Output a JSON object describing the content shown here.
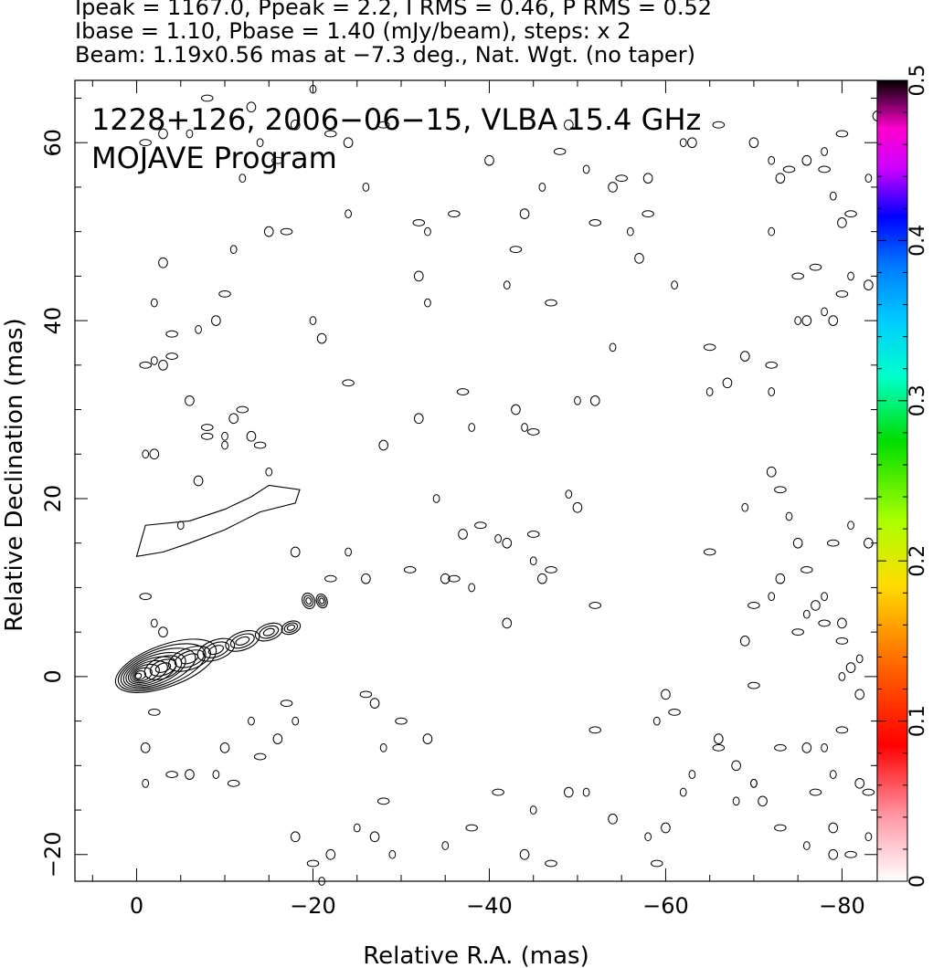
{
  "header": {
    "line1": "Ipeak = 1167.0, Ppeak = 2.2, I RMS = 0.46, P RMS = 0.52",
    "line2": "Ibase = 1.10, Pbase = 1.40 (mJy/beam), steps: x 2",
    "line3": "Beam: 1.19x0.56 mas at −7.3 deg., Nat. Wgt. (no taper)"
  },
  "chart_data": {
    "type": "contour",
    "title": "1228+126, 2006−06−15, VLBA 15.4 GHz",
    "subtitle": "MOJAVE Program",
    "xlabel": "Relative R.A. (mas)",
    "ylabel": "Relative Declination (mas)",
    "xlim": [
      7,
      -84
    ],
    "ylim": [
      -23,
      67
    ],
    "x_ticks": [
      0,
      -20,
      -40,
      -60,
      -80
    ],
    "x_tick_labels": [
      "0",
      "−20",
      "−40",
      "−60",
      "−80"
    ],
    "y_ticks": [
      -20,
      0,
      20,
      40,
      60
    ],
    "y_tick_labels": [
      "−20",
      "0",
      "20",
      "40",
      "60"
    ],
    "colorbar": {
      "range": [
        0,
        0.5
      ],
      "ticks": [
        0,
        0.1,
        0.2,
        0.3,
        0.4,
        0.5
      ],
      "tick_labels": [
        "0",
        "0.1",
        "0.2",
        "0.3",
        "0.4",
        "0.5"
      ]
    },
    "core": {
      "x": 0,
      "y": 0,
      "levels": 10
    },
    "jet_knots": [
      {
        "x": -3,
        "y": 1,
        "rx": 2.2,
        "ry": 1.2
      },
      {
        "x": -6,
        "y": 2,
        "rx": 2.5,
        "ry": 1.2
      },
      {
        "x": -9,
        "y": 3,
        "rx": 2.2,
        "ry": 1.1
      },
      {
        "x": -12,
        "y": 4,
        "rx": 2.0,
        "ry": 1.0
      },
      {
        "x": -15,
        "y": 5,
        "rx": 1.6,
        "ry": 0.9
      },
      {
        "x": -17.5,
        "y": 5.5,
        "rx": 1.1,
        "ry": 0.7
      },
      {
        "x": -19.5,
        "y": 8.5,
        "rx": 0.7,
        "ry": 0.9
      },
      {
        "x": -21,
        "y": 8.5,
        "rx": 0.6,
        "ry": 0.8
      }
    ],
    "counterjet_outline": [
      [
        0,
        13.5
      ],
      [
        -1,
        17
      ],
      [
        -6,
        17.5
      ],
      [
        -10,
        18.8
      ],
      [
        -13,
        20.2
      ],
      [
        -15,
        21.5
      ],
      [
        -18.5,
        21
      ],
      [
        -18,
        19.5
      ],
      [
        -14,
        18.5
      ],
      [
        -10,
        16.5
      ],
      [
        -6,
        15
      ],
      [
        -3,
        14
      ],
      [
        0,
        13.5
      ]
    ],
    "noise": [
      [
        -2,
        42
      ],
      [
        -3,
        46.5
      ],
      [
        -4,
        38.5
      ],
      [
        -7,
        39
      ],
      [
        -9,
        40
      ],
      [
        -10,
        43
      ],
      [
        -11,
        48
      ],
      [
        -6,
        31
      ],
      [
        -8,
        28
      ],
      [
        -10,
        26
      ],
      [
        -11,
        29
      ],
      [
        -12,
        30
      ],
      [
        -1,
        25
      ],
      [
        -2,
        25
      ],
      [
        -1,
        35
      ],
      [
        -2,
        35.5
      ],
      [
        -3,
        35
      ],
      [
        -4,
        36
      ],
      [
        -12,
        56
      ],
      [
        -15,
        50
      ],
      [
        -17,
        50
      ],
      [
        -20,
        40
      ],
      [
        -21,
        38
      ],
      [
        -24,
        33
      ],
      [
        -24,
        52
      ],
      [
        -28,
        26
      ],
      [
        -32,
        51
      ],
      [
        -33,
        42
      ],
      [
        -35,
        11
      ],
      [
        -36,
        11
      ],
      [
        -38,
        10
      ],
      [
        -37,
        16
      ],
      [
        -39,
        17
      ],
      [
        -41,
        15.5
      ],
      [
        -42,
        15
      ],
      [
        -45,
        16
      ],
      [
        -45,
        13
      ],
      [
        -46,
        11
      ],
      [
        -47,
        12
      ],
      [
        -49,
        20.5
      ],
      [
        -50,
        19
      ],
      [
        -52,
        8
      ],
      [
        -50,
        31
      ],
      [
        -52,
        31
      ],
      [
        -45,
        27.5
      ],
      [
        -44,
        28
      ],
      [
        -42,
        6
      ],
      [
        -41,
        -13
      ],
      [
        -45,
        -15
      ],
      [
        -44,
        -20
      ],
      [
        -38,
        -17
      ],
      [
        -35,
        -19
      ],
      [
        -33,
        -7
      ],
      [
        -30,
        -5
      ],
      [
        -28,
        -8
      ],
      [
        -27,
        -3
      ],
      [
        -26,
        -2
      ],
      [
        -25,
        -17
      ],
      [
        -27,
        -18
      ],
      [
        -28,
        -14
      ],
      [
        -29,
        -20
      ],
      [
        -22,
        -20
      ],
      [
        -20,
        -21
      ],
      [
        -21,
        -23
      ],
      [
        -18,
        -18
      ],
      [
        -17,
        -3
      ],
      [
        -18,
        -5
      ],
      [
        -16,
        -7
      ],
      [
        -14,
        -9
      ],
      [
        -13,
        -5
      ],
      [
        -10,
        -8
      ],
      [
        -11,
        -12
      ],
      [
        -9,
        -11
      ],
      [
        -6,
        -11
      ],
      [
        -4,
        -11
      ],
      [
        -1,
        -12
      ],
      [
        -1,
        -8
      ],
      [
        -2,
        -4
      ],
      [
        -2,
        6
      ],
      [
        -3,
        5
      ],
      [
        -1,
        9
      ],
      [
        -5,
        17
      ],
      [
        -7,
        22
      ],
      [
        -8,
        27
      ],
      [
        -10,
        27
      ],
      [
        -13,
        27
      ],
      [
        -14,
        26
      ],
      [
        -15,
        23
      ],
      [
        -18,
        14
      ],
      [
        -22,
        11
      ],
      [
        -24,
        14
      ],
      [
        -26,
        11
      ],
      [
        -31,
        12
      ],
      [
        -34,
        20
      ],
      [
        -32,
        29
      ],
      [
        -37,
        32
      ],
      [
        -38,
        28
      ],
      [
        -43,
        30
      ],
      [
        -47,
        42
      ],
      [
        -54,
        37
      ],
      [
        -57,
        47
      ],
      [
        -55,
        56
      ],
      [
        -61,
        44
      ],
      [
        -63,
        60
      ],
      [
        -65,
        37
      ],
      [
        -65,
        32
      ],
      [
        -67,
        33
      ],
      [
        -65,
        14
      ],
      [
        -69,
        19
      ],
      [
        -69,
        36
      ],
      [
        -72,
        35
      ],
      [
        -72,
        50
      ],
      [
        -73,
        56
      ],
      [
        -75,
        45
      ],
      [
        -75,
        40
      ],
      [
        -76,
        40
      ],
      [
        -77,
        46
      ],
      [
        -78,
        41
      ],
      [
        -79,
        40
      ],
      [
        -80,
        43
      ],
      [
        -81,
        45
      ],
      [
        -83,
        44
      ],
      [
        -78,
        57
      ],
      [
        -79,
        54
      ],
      [
        -80,
        51
      ],
      [
        -81,
        52
      ],
      [
        -83,
        56
      ],
      [
        -84,
        63
      ],
      [
        -80,
        61
      ],
      [
        -78,
        59
      ],
      [
        -76,
        58
      ],
      [
        -74,
        57
      ],
      [
        -72,
        58
      ],
      [
        -70,
        60
      ],
      [
        -66,
        62
      ],
      [
        -62,
        60
      ],
      [
        -58,
        56
      ],
      [
        -58,
        52
      ],
      [
        -56,
        50
      ],
      [
        -54,
        55
      ],
      [
        -52,
        51
      ],
      [
        -51,
        57
      ],
      [
        -49,
        62
      ],
      [
        -48,
        59
      ],
      [
        -46,
        55
      ],
      [
        -44,
        52
      ],
      [
        -43,
        48
      ],
      [
        -42,
        44
      ],
      [
        -40,
        58
      ],
      [
        -36,
        52
      ],
      [
        -33,
        50
      ],
      [
        -32,
        45
      ],
      [
        -28,
        62
      ],
      [
        -26,
        55
      ],
      [
        -24,
        60
      ],
      [
        -22,
        61
      ],
      [
        -20,
        66
      ],
      [
        -18,
        62
      ],
      [
        -16,
        58
      ],
      [
        -14,
        60
      ],
      [
        -13,
        64
      ],
      [
        -8,
        65
      ],
      [
        -6,
        61
      ],
      [
        -3,
        61
      ],
      [
        -1,
        60
      ],
      [
        -72,
        32
      ],
      [
        -72,
        23
      ],
      [
        -73,
        21
      ],
      [
        -74,
        18
      ],
      [
        -75,
        15
      ],
      [
        -76,
        12
      ],
      [
        -78,
        9
      ],
      [
        -80,
        6
      ],
      [
        -80,
        4
      ],
      [
        -82,
        2
      ],
      [
        -82,
        -2
      ],
      [
        -80,
        -6
      ],
      [
        -78,
        -8
      ],
      [
        -76,
        -8
      ],
      [
        -73,
        -8
      ],
      [
        -70,
        -12
      ],
      [
        -68,
        -10
      ],
      [
        -66,
        -8
      ],
      [
        -68,
        -14
      ],
      [
        -71,
        -14
      ],
      [
        -73,
        -17
      ],
      [
        -76,
        -19
      ],
      [
        -79,
        -20
      ],
      [
        -81,
        -20
      ],
      [
        -83,
        -18
      ],
      [
        -79,
        -17
      ],
      [
        -77,
        -13
      ],
      [
        -79,
        -11
      ],
      [
        -82,
        -12
      ],
      [
        -83,
        -13
      ],
      [
        -62,
        -13
      ],
      [
        -60,
        -17
      ],
      [
        -59,
        -21
      ],
      [
        -58,
        -18
      ],
      [
        -54,
        -16
      ],
      [
        -52,
        -6
      ],
      [
        -51,
        -13
      ],
      [
        -49,
        -13
      ],
      [
        -47,
        -21
      ],
      [
        -59,
        -5
      ],
      [
        -60,
        -2
      ],
      [
        -61,
        -4
      ],
      [
        -63,
        -11
      ],
      [
        -66,
        -7
      ],
      [
        -70,
        -1
      ],
      [
        -70,
        -12
      ],
      [
        -69,
        4
      ],
      [
        -70,
        8
      ],
      [
        -72,
        9
      ],
      [
        -73,
        11
      ],
      [
        -75,
        5
      ],
      [
        -76,
        7
      ],
      [
        -77,
        8
      ],
      [
        -78,
        6
      ],
      [
        -80,
        0
      ],
      [
        -81,
        1
      ],
      [
        -79,
        15
      ],
      [
        -81,
        17
      ],
      [
        -83,
        15
      ]
    ]
  }
}
